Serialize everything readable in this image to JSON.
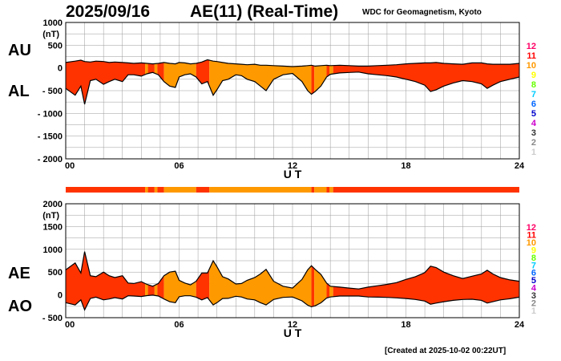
{
  "header": {
    "date": "2025/09/16",
    "title": "AE(11) (Real-Time)",
    "source": "WDC for Geomagnetism, Kyoto"
  },
  "footer": {
    "created": "[Created at 2025-10-02 00:22UT]"
  },
  "colors": {
    "fill_11": "#ff3300",
    "fill_10": "#ff9900",
    "grid": "#9a9a9a",
    "outline": "#000000"
  },
  "legend": {
    "title_note": "station count",
    "levels": [
      {
        "label": "12",
        "color": "#ff0066"
      },
      {
        "label": "11",
        "color": "#ff0000"
      },
      {
        "label": "10",
        "color": "#ff9900"
      },
      {
        "label": "9",
        "color": "#ffff00"
      },
      {
        "label": "8",
        "color": "#66ff00"
      },
      {
        "label": "7",
        "color": "#00ccff"
      },
      {
        "label": "6",
        "color": "#0066ff"
      },
      {
        "label": "5",
        "color": "#0000cc"
      },
      {
        "label": "4",
        "color": "#cc00cc"
      },
      {
        "label": "3",
        "color": "#333333"
      },
      {
        "label": "2",
        "color": "#888888"
      },
      {
        "label": "1",
        "color": "#cccccc"
      }
    ]
  },
  "chart_data": [
    {
      "type": "area",
      "id": "au-al",
      "series_labels": [
        "AU",
        "AL"
      ],
      "xlabel": "U T",
      "ylabel_unit": "(nT)",
      "xlim": [
        0,
        24
      ],
      "ylim": [
        -2000,
        1000
      ],
      "x_ticks": [
        0,
        6,
        12,
        18,
        24
      ],
      "x_tick_labels": [
        "00",
        "06",
        "12",
        "18",
        "24"
      ],
      "y_ticks": [
        1000,
        500,
        0,
        -500,
        -1000,
        -1500,
        -2000
      ],
      "y_tick_labels": [
        "1000",
        "500",
        "0",
        "- 500",
        "- 1000",
        "- 1500",
        "- 2000"
      ],
      "x_hours": [
        0,
        0.5,
        0.8,
        1,
        1.3,
        1.6,
        2,
        2.3,
        2.6,
        3,
        3.3,
        3.6,
        4,
        4.3,
        4.6,
        4.9,
        5.2,
        5.5,
        5.8,
        6,
        6.3,
        6.6,
        6.9,
        7.2,
        7.5,
        7.8,
        8,
        8.3,
        8.6,
        9,
        9.3,
        9.6,
        10,
        10.3,
        10.6,
        11,
        11.5,
        12,
        12.5,
        12.8,
        13,
        13.2,
        13.5,
        13.8,
        14,
        14.5,
        15,
        15.5,
        16,
        16.5,
        17,
        17.5,
        18,
        18.5,
        19,
        19.3,
        19.6,
        20,
        20.5,
        21,
        21.5,
        22,
        22.3,
        22.6,
        23,
        23.5,
        24
      ],
      "upper": [
        120,
        150,
        170,
        140,
        130,
        150,
        140,
        120,
        130,
        120,
        110,
        100,
        110,
        100,
        90,
        100,
        120,
        100,
        90,
        120,
        110,
        90,
        100,
        130,
        180,
        150,
        140,
        120,
        100,
        90,
        80,
        70,
        80,
        60,
        60,
        50,
        40,
        30,
        40,
        50,
        60,
        40,
        50,
        60,
        50,
        60,
        50,
        40,
        40,
        50,
        60,
        70,
        90,
        100,
        110,
        110,
        120,
        100,
        90,
        80,
        110,
        110,
        90,
        80,
        80,
        80,
        100
      ],
      "lower": [
        -450,
        -600,
        -400,
        -800,
        -280,
        -250,
        -360,
        -300,
        -250,
        -300,
        -150,
        -150,
        -180,
        -130,
        -100,
        -150,
        -300,
        -400,
        -430,
        -200,
        -150,
        -130,
        -200,
        -350,
        -300,
        -600,
        -480,
        -280,
        -250,
        -150,
        -170,
        -250,
        -300,
        -400,
        -500,
        -250,
        -150,
        -120,
        -300,
        -500,
        -580,
        -520,
        -400,
        -200,
        -140,
        -110,
        -100,
        -90,
        -130,
        -150,
        -170,
        -200,
        -250,
        -300,
        -380,
        -520,
        -480,
        -400,
        -330,
        -280,
        -300,
        -350,
        -450,
        -380,
        -300,
        -250,
        -200
      ],
      "station_bands": [
        {
          "from": 0,
          "to": 4.2,
          "level": 11
        },
        {
          "from": 4.2,
          "to": 4.35,
          "level": 10
        },
        {
          "from": 4.35,
          "to": 4.7,
          "level": 11
        },
        {
          "from": 4.7,
          "to": 4.85,
          "level": 10
        },
        {
          "from": 4.85,
          "to": 5.2,
          "level": 11
        },
        {
          "from": 5.2,
          "to": 6.9,
          "level": 10
        },
        {
          "from": 6.9,
          "to": 7.6,
          "level": 11
        },
        {
          "from": 7.6,
          "to": 13.0,
          "level": 10
        },
        {
          "from": 13.0,
          "to": 13.15,
          "level": 11
        },
        {
          "from": 13.15,
          "to": 13.8,
          "level": 10
        },
        {
          "from": 13.8,
          "to": 13.95,
          "level": 11
        },
        {
          "from": 13.95,
          "to": 14.15,
          "level": 10
        },
        {
          "from": 14.15,
          "to": 24,
          "level": 11
        }
      ]
    },
    {
      "type": "area",
      "id": "ae-ao",
      "series_labels": [
        "AE",
        "AO"
      ],
      "xlabel": "U T",
      "ylabel_unit": "(nT)",
      "xlim": [
        0,
        24
      ],
      "ylim": [
        -500,
        2000
      ],
      "x_ticks": [
        0,
        6,
        12,
        18,
        24
      ],
      "x_tick_labels": [
        "00",
        "06",
        "12",
        "18",
        "24"
      ],
      "y_ticks": [
        2000,
        1500,
        1000,
        500,
        0,
        -500
      ],
      "y_tick_labels": [
        "2000",
        "1500",
        "1000",
        "500",
        "0",
        "- 500"
      ],
      "x_hours": [
        0,
        0.5,
        0.8,
        1,
        1.3,
        1.6,
        2,
        2.3,
        2.6,
        3,
        3.3,
        3.6,
        4,
        4.3,
        4.6,
        4.9,
        5.2,
        5.5,
        5.8,
        6,
        6.3,
        6.6,
        6.9,
        7.2,
        7.5,
        7.8,
        8,
        8.3,
        8.6,
        9,
        9.3,
        9.6,
        10,
        10.3,
        10.6,
        11,
        11.5,
        12,
        12.5,
        12.8,
        13,
        13.2,
        13.5,
        13.8,
        14,
        14.5,
        15,
        15.5,
        16,
        16.5,
        17,
        17.5,
        18,
        18.5,
        19,
        19.3,
        19.6,
        20,
        20.5,
        21,
        21.5,
        22,
        22.3,
        22.6,
        23,
        23.5,
        24
      ],
      "upper": [
        550,
        700,
        480,
        950,
        420,
        400,
        500,
        420,
        380,
        420,
        260,
        250,
        290,
        230,
        190,
        250,
        420,
        500,
        520,
        320,
        260,
        220,
        300,
        480,
        480,
        750,
        620,
        400,
        350,
        240,
        250,
        320,
        380,
        460,
        560,
        300,
        190,
        150,
        340,
        550,
        640,
        560,
        450,
        260,
        190,
        170,
        150,
        130,
        170,
        200,
        230,
        270,
        340,
        400,
        490,
        630,
        600,
        500,
        420,
        360,
        410,
        460,
        540,
        460,
        380,
        330,
        300
      ],
      "lower": [
        -170,
        -220,
        -110,
        -330,
        -80,
        -50,
        -110,
        -90,
        -60,
        -90,
        -20,
        -25,
        -35,
        -15,
        -5,
        -25,
        -90,
        -150,
        -170,
        -40,
        -20,
        -20,
        -50,
        -110,
        -60,
        -220,
        -170,
        -80,
        -75,
        -30,
        -45,
        -90,
        -110,
        -170,
        -220,
        -100,
        -55,
        -45,
        -130,
        -225,
        -260,
        -240,
        -175,
        -70,
        -45,
        -25,
        -25,
        -25,
        -45,
        -50,
        -55,
        -65,
        -80,
        -100,
        -135,
        -205,
        -180,
        -150,
        -120,
        -100,
        -95,
        -120,
        -180,
        -150,
        -110,
        -85,
        -50
      ],
      "station_bands": [
        {
          "from": 0,
          "to": 4.2,
          "level": 11
        },
        {
          "from": 4.2,
          "to": 4.35,
          "level": 10
        },
        {
          "from": 4.35,
          "to": 4.7,
          "level": 11
        },
        {
          "from": 4.7,
          "to": 4.85,
          "level": 10
        },
        {
          "from": 4.85,
          "to": 5.2,
          "level": 11
        },
        {
          "from": 5.2,
          "to": 6.9,
          "level": 10
        },
        {
          "from": 6.9,
          "to": 7.6,
          "level": 11
        },
        {
          "from": 7.6,
          "to": 13.0,
          "level": 10
        },
        {
          "from": 13.0,
          "to": 13.15,
          "level": 11
        },
        {
          "from": 13.15,
          "to": 13.8,
          "level": 10
        },
        {
          "from": 13.8,
          "to": 13.95,
          "level": 11
        },
        {
          "from": 13.95,
          "to": 14.15,
          "level": 10
        },
        {
          "from": 14.15,
          "to": 24,
          "level": 11
        }
      ]
    }
  ]
}
